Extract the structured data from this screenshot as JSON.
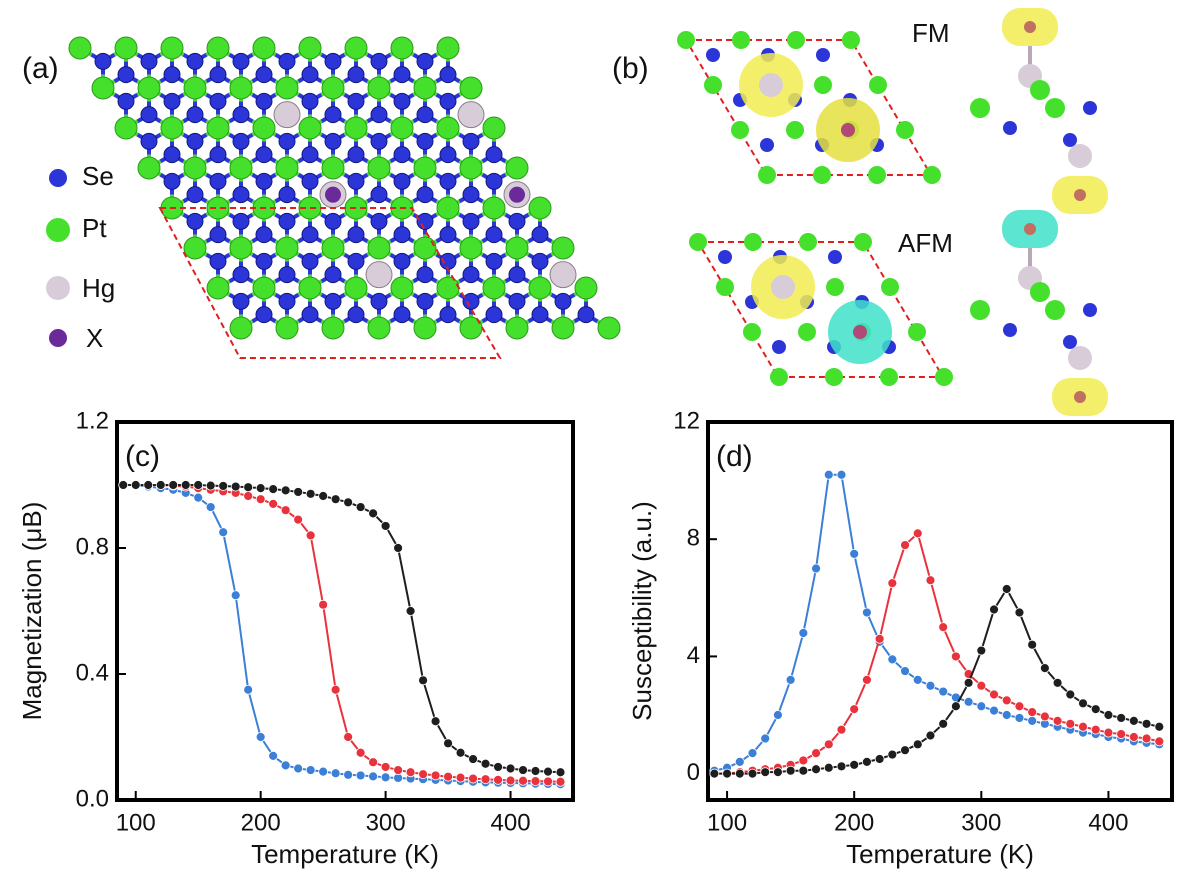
{
  "structures": {
    "a": {
      "label": "(a)",
      "legend": [
        "Se",
        "Pt",
        "Hg",
        "X"
      ]
    },
    "b": {
      "label": "(b)",
      "states": [
        "FM",
        "AFM"
      ]
    }
  },
  "chart_data": [
    {
      "type": "line",
      "panel_label": "(c)",
      "xlabel": "Temperature (K)",
      "ylabel": "Magnetization (μB)",
      "x": [
        90,
        100,
        110,
        120,
        130,
        140,
        150,
        160,
        170,
        180,
        190,
        200,
        210,
        220,
        230,
        240,
        250,
        260,
        270,
        280,
        290,
        300,
        310,
        320,
        330,
        340,
        350,
        360,
        370,
        380,
        390,
        400,
        410,
        420,
        430,
        440
      ],
      "xlim": [
        85,
        450
      ],
      "xticks": [
        100,
        200,
        300,
        400
      ],
      "ylim": [
        0,
        1.2
      ],
      "yticks": [
        {
          "value": 0,
          "label": "0.0"
        },
        0.4,
        0.8,
        1.2
      ],
      "series": [
        {
          "color": "#3b7fd8",
          "values": [
            1.0,
            1.0,
            0.995,
            0.99,
            0.985,
            0.975,
            0.96,
            0.93,
            0.85,
            0.65,
            0.35,
            0.2,
            0.14,
            0.11,
            0.1,
            0.095,
            0.09,
            0.085,
            0.08,
            0.078,
            0.075,
            0.072,
            0.07,
            0.068,
            0.066,
            0.064,
            0.062,
            0.06,
            0.058,
            0.056,
            0.055,
            0.054,
            0.053,
            0.052,
            0.051,
            0.05
          ]
        },
        {
          "color": "#e8323c",
          "values": [
            1.0,
            1.0,
            1.0,
            1.0,
            0.998,
            0.995,
            0.99,
            0.985,
            0.98,
            0.975,
            0.965,
            0.955,
            0.94,
            0.92,
            0.89,
            0.84,
            0.62,
            0.35,
            0.2,
            0.15,
            0.12,
            0.105,
            0.095,
            0.088,
            0.082,
            0.078,
            0.074,
            0.071,
            0.068,
            0.066,
            0.064,
            0.062,
            0.061,
            0.06,
            0.059,
            0.058
          ]
        },
        {
          "color": "#1e1e1e",
          "values": [
            1,
            1,
            1,
            1,
            1,
            1,
            1,
            0.998,
            0.997,
            0.995,
            0.993,
            0.99,
            0.987,
            0.983,
            0.978,
            0.972,
            0.965,
            0.955,
            0.945,
            0.93,
            0.91,
            0.87,
            0.8,
            0.6,
            0.38,
            0.25,
            0.18,
            0.15,
            0.13,
            0.115,
            0.105,
            0.1,
            0.095,
            0.092,
            0.09,
            0.088
          ]
        }
      ]
    },
    {
      "type": "line",
      "panel_label": "(d)",
      "xlabel": "Temperature (K)",
      "ylabel": "Susceptibility (a.u.)",
      "x": [
        90,
        100,
        110,
        120,
        130,
        140,
        150,
        160,
        170,
        180,
        190,
        200,
        210,
        220,
        230,
        240,
        250,
        260,
        270,
        280,
        290,
        300,
        310,
        320,
        330,
        340,
        350,
        360,
        370,
        380,
        390,
        400,
        410,
        420,
        430,
        440
      ],
      "xlim": [
        85,
        450
      ],
      "xticks": [
        100,
        200,
        300,
        400
      ],
      "ylim": [
        -0.9,
        12
      ],
      "yticks": [
        0,
        4,
        8,
        12
      ],
      "series": [
        {
          "color": "#3b7fd8",
          "values": [
            0.1,
            0.2,
            0.4,
            0.7,
            1.2,
            2.0,
            3.2,
            4.8,
            7.0,
            10.2,
            10.2,
            7.5,
            5.5,
            4.5,
            3.9,
            3.5,
            3.2,
            3.0,
            2.8,
            2.6,
            2.45,
            2.3,
            2.15,
            2.0,
            1.9,
            1.8,
            1.7,
            1.6,
            1.5,
            1.4,
            1.35,
            1.25,
            1.2,
            1.1,
            1.05,
            1.0
          ]
        },
        {
          "color": "#e8323c",
          "values": [
            0,
            0,
            0.05,
            0.1,
            0.15,
            0.2,
            0.3,
            0.45,
            0.7,
            1.0,
            1.5,
            2.2,
            3.2,
            4.6,
            6.5,
            7.8,
            8.2,
            6.6,
            5.0,
            4.0,
            3.4,
            3.0,
            2.7,
            2.5,
            2.3,
            2.1,
            1.95,
            1.8,
            1.7,
            1.6,
            1.5,
            1.4,
            1.35,
            1.25,
            1.2,
            1.1
          ]
        },
        {
          "color": "#1e1e1e",
          "values": [
            0,
            0,
            0,
            0,
            0.05,
            0.05,
            0.1,
            0.1,
            0.15,
            0.2,
            0.25,
            0.3,
            0.4,
            0.5,
            0.65,
            0.8,
            1.0,
            1.3,
            1.7,
            2.3,
            3.1,
            4.2,
            5.6,
            6.3,
            5.5,
            4.4,
            3.6,
            3.1,
            2.7,
            2.4,
            2.2,
            2.0,
            1.9,
            1.8,
            1.7,
            1.6
          ]
        }
      ]
    }
  ]
}
